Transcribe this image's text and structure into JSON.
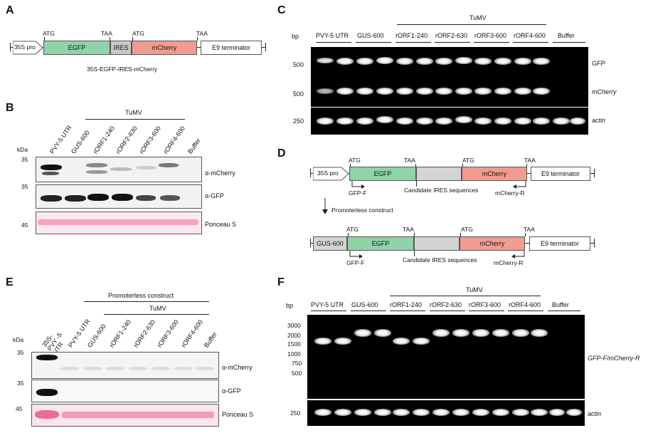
{
  "panels": {
    "a": "A",
    "b": "B",
    "c": "C",
    "d": "D",
    "e": "E",
    "f": "F"
  },
  "panel_a": {
    "segments": [
      "35S pro",
      "EGFP",
      "IRES",
      "mCherry",
      "E9 terminator"
    ],
    "codons": [
      "ATG",
      "TAA",
      "ATG",
      "TAA"
    ],
    "caption": "35S-EGFP-IRES-mCherry",
    "colors": {
      "egfp": "#8fd3a8",
      "ires": "#c8c8c8",
      "mcherry": "#f29b8f"
    }
  },
  "panel_b": {
    "kda": "kDa",
    "group": "TuMV",
    "lanes": [
      "PVY-5 UTR",
      "GUS-600",
      "rORF1-240",
      "rORF2-630",
      "rORF3-600",
      "rORF4-600",
      "Buffer"
    ],
    "markers": [
      "35",
      "35",
      "45"
    ],
    "rows": [
      "α-mCherry",
      "α-GFP",
      "Ponceau S"
    ]
  },
  "panel_c": {
    "bp": "bp",
    "group": "TuMV",
    "lanes": [
      "PVY-5 UTR",
      "GUS-600",
      "rORF1-240",
      "rORF2-630",
      "rORF3-600",
      "rORF4-600",
      "Buffer"
    ],
    "markers": [
      "500",
      "500",
      "250"
    ],
    "rows": [
      "GFP",
      "mCherry",
      "actin"
    ]
  },
  "panel_d": {
    "top": {
      "segments": [
        "35S pro",
        "EGFP",
        "mCherry",
        "E9 terminator"
      ],
      "codons": [
        "ATG",
        "TAA",
        "ATG",
        "TAA"
      ]
    },
    "primer_f": "GFP-F",
    "ires_label": "Candidate IRES sequences",
    "primer_r": "mCherry-R",
    "arrow_label": "Promoterless construct",
    "bottom": {
      "segments": [
        "GUS-600",
        "EGFP",
        "mCherry",
        "E9 terminator"
      ],
      "codons": [
        "ATG",
        "TAA",
        "ATG",
        "TAA"
      ]
    }
  },
  "panel_e": {
    "kda": "kDa",
    "group_outer": "Promoterless construct",
    "group": "TuMV",
    "lanes": [
      "35S-PVY -5 UTR",
      "PVY-5 UTR",
      "GUS-600",
      "rORF1-240",
      "rORF2-630",
      "rORF3-600",
      "rORF4-600",
      "Buffer"
    ],
    "markers": [
      "35",
      "35",
      "45"
    ],
    "rows": [
      "α-mCherry",
      "α-GFP",
      "Ponceau S"
    ]
  },
  "panel_f": {
    "bp": "bp",
    "group": "TuMV",
    "lanes": [
      "PVY-5 UTR",
      "GUS-600",
      "rORF1-240",
      "rORF2-630",
      "rORF3-600",
      "rORF4-600",
      "Buffer"
    ],
    "ladder": [
      "3000",
      "2000",
      "1500",
      "1000",
      "750",
      "500"
    ],
    "actin_marker": "250",
    "rows": [
      "GFP-F/mCherry-R",
      "actin"
    ]
  }
}
